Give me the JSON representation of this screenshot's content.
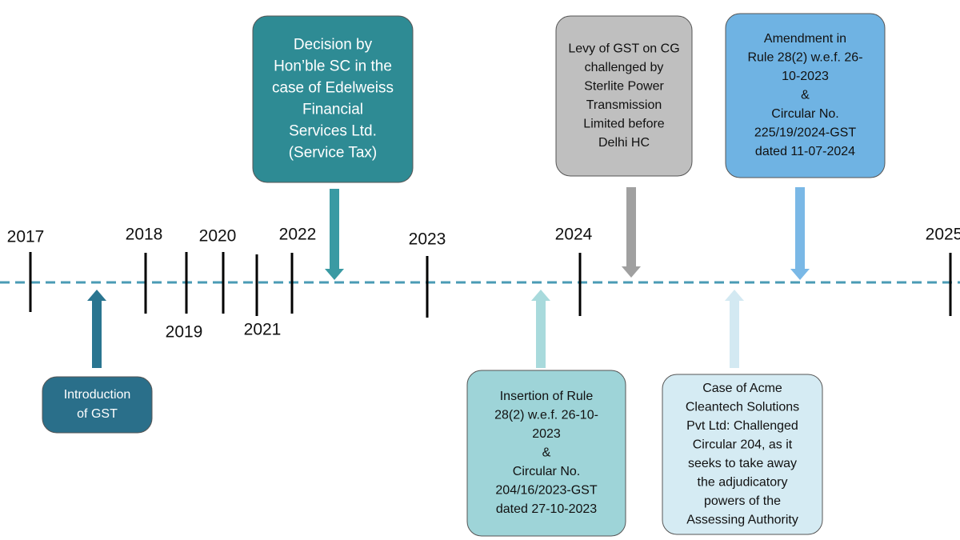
{
  "years": [
    "2017",
    "2018",
    "2019",
    "2020",
    "2021",
    "2022",
    "2023",
    "2024",
    "2025"
  ],
  "events": [
    {
      "lines": [
        "Introduction",
        "of GST"
      ]
    },
    {
      "lines": [
        "Decision by",
        "Hon’ble SC in the",
        "case of Edelweiss",
        "Financial",
        "Services Ltd.",
        "(Service Tax)"
      ]
    },
    {
      "lines": [
        "Insertion of Rule",
        "28(2) w.e.f. 26-10-",
        "2023",
        "&",
        "Circular No.",
        "204/16/2023-GST",
        "dated 27-10-2023"
      ]
    },
    {
      "lines": [
        "Levy of GST on CG",
        "challenged by",
        "Sterlite Power",
        "Transmission",
        "Limited before",
        "Delhi HC"
      ]
    },
    {
      "lines": [
        "Amendment in",
        "Rule 28(2) w.e.f. 26-",
        "10-2023",
        "&",
        "Circular No.",
        "225/19/2024-GST",
        "dated 11-07-2024"
      ]
    },
    {
      "lines": [
        "Case of Acme",
        "Cleantech Solutions",
        "Pvt Ltd: Challenged",
        "Circular 204, as it",
        "seeks to take away",
        "the adjudicatory",
        "powers of the",
        "Assessing Authority"
      ]
    }
  ]
}
